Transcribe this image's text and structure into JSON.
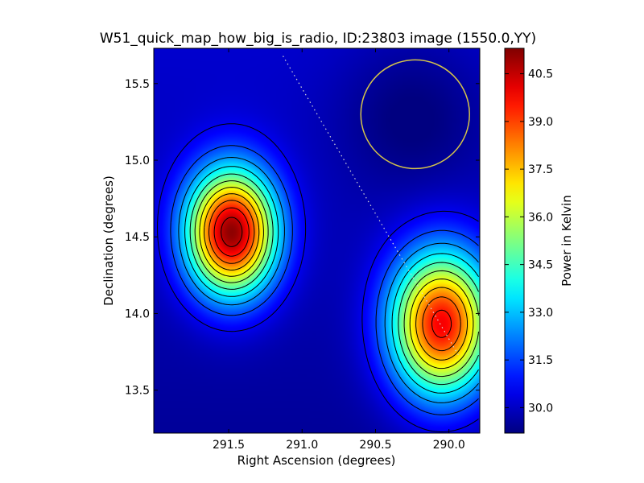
{
  "chart_data": {
    "type": "heatmap",
    "title": "W51_quick_map_how_big_is_radio, ID:23803 image (1550.0,YY)",
    "xlabel": "Right Ascension (degrees)",
    "ylabel": "Declination (degrees)",
    "x_reversed": true,
    "xlim": [
      292.01,
      289.79
    ],
    "ylim": [
      13.22,
      15.73
    ],
    "xticks": [
      291.5,
      291.0,
      290.5,
      290.0
    ],
    "xtick_labels": [
      "291.5",
      "291.0",
      "290.5",
      "290.0"
    ],
    "yticks": [
      13.5,
      14.0,
      14.5,
      15.0,
      15.5
    ],
    "ytick_labels": [
      "13.5",
      "14.0",
      "14.5",
      "15.0",
      "15.5"
    ],
    "colorbar": {
      "label": "Power in Kelvin",
      "range": [
        29.2,
        41.3
      ],
      "ticks": [
        30.0,
        31.5,
        33.0,
        34.5,
        36.0,
        37.5,
        39.0,
        40.5
      ],
      "tick_labels": [
        "30.0",
        "31.5",
        "33.0",
        "34.5",
        "36.0",
        "37.5",
        "39.0",
        "40.5"
      ]
    },
    "colormap": "jet",
    "peaks": [
      {
        "ra": 291.48,
        "dec": 14.53,
        "value": 41.3
      },
      {
        "ra": 290.05,
        "dec": 13.93,
        "value": 40.2
      }
    ],
    "beam_circle": {
      "ra": 290.23,
      "dec": 15.3,
      "radius_deg": 0.37,
      "color": "#d4c34a"
    },
    "scan_track": {
      "start": {
        "ra": 291.13,
        "dec": 15.68
      },
      "end": {
        "ra": 289.93,
        "dec": 13.72
      },
      "color": "#d8d8d8"
    },
    "contour_levels": [
      30.5,
      31.5,
      32.5,
      33.5,
      34.5,
      35.5,
      36.5,
      37.5,
      38.5,
      39.5,
      40.5
    ]
  }
}
